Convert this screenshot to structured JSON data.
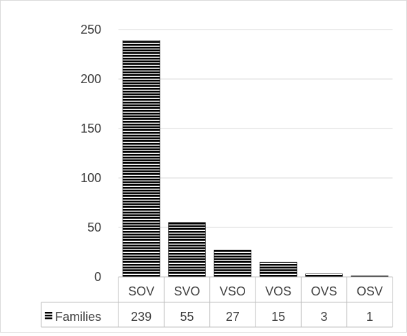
{
  "chart_data": {
    "type": "bar",
    "categories": [
      "SOV",
      "SVO",
      "VSO",
      "VOS",
      "OVS",
      "OSV"
    ],
    "series": [
      {
        "name": "Families",
        "values": [
          239,
          55,
          27,
          15,
          3,
          1
        ]
      }
    ],
    "ylim": [
      0,
      250
    ],
    "yticks": [
      0,
      50,
      100,
      150,
      200,
      250
    ],
    "grid": true,
    "legend": "data-table",
    "fill_pattern": "horizontal-stripes",
    "bar_color": "#000000",
    "title": "",
    "xlabel": "",
    "ylabel": ""
  }
}
